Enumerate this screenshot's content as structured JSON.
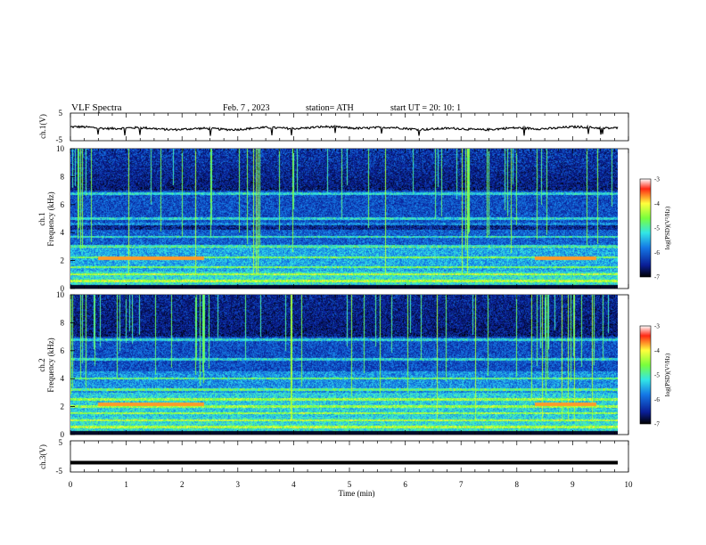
{
  "header": {
    "title": "VLF  Spectra",
    "date": "Feb. 7  , 2023",
    "station": "station= ATH",
    "start": "start  UT  =   20: 10: 1"
  },
  "colors": {
    "spectrogram_background": "#000000",
    "noise_low": "#0a1e96",
    "noise_mid": "#1478e6",
    "signal_cyan": "#32e6e6",
    "signal_green": "#78ff3c",
    "signal_yellow": "#ffff3c",
    "signal_red": "#ff2814"
  },
  "chart_data": [
    {
      "type": "line",
      "panel": "ch1-waveform",
      "ylabel": "ch.1(V)",
      "ylim": [
        -5,
        5
      ],
      "yticks": [
        "5",
        "-5"
      ],
      "xlim": [
        0,
        10
      ],
      "series": [
        {
          "values_description": "waveform centered near -0.5 V with small fluctuation",
          "mean": -0.5,
          "amplitude": 0.8
        }
      ]
    },
    {
      "type": "heatmap",
      "panel": "ch1-spectrogram",
      "ylabel": "ch.1\nFrequency (kHz)",
      "ylim": [
        0,
        10
      ],
      "yticks": [
        "0",
        "2",
        "4",
        "6",
        "8",
        "10"
      ],
      "xlim": [
        0,
        10
      ],
      "colorbar": {
        "label": "log(PSD)(V²/Hz)",
        "range": [
          -7,
          -3
        ],
        "ticks": [
          "-3",
          "-4",
          "-5",
          "-6",
          "-7"
        ]
      },
      "bands_khz": [
        0.5,
        1.0,
        1.5,
        2.2,
        3.0,
        3.7,
        4.6,
        5.0,
        6.8
      ]
    },
    {
      "type": "heatmap",
      "panel": "ch2-spectrogram",
      "ylabel": "ch.2\nFrequency (kHz)",
      "ylim": [
        0,
        10
      ],
      "yticks": [
        "0",
        "2",
        "4",
        "6",
        "8",
        "10"
      ],
      "xlim": [
        0,
        10
      ],
      "colorbar": {
        "label": "log(PSD)(V²/Hz)",
        "range": [
          -7,
          -3
        ],
        "ticks": [
          "-3",
          "-4",
          "-5",
          "-6",
          "-7"
        ]
      },
      "bands_khz": [
        0.5,
        1.0,
        1.5,
        2.0,
        2.5,
        3.2,
        4.0,
        5.4,
        6.8
      ]
    },
    {
      "type": "line",
      "panel": "ch3-waveform",
      "ylabel": "ch.3(V)",
      "ylim": [
        -5,
        5
      ],
      "yticks": [
        "5",
        "-5"
      ],
      "xlim": [
        0,
        10
      ],
      "series": [
        {
          "values_description": "flat line near -2 V",
          "mean": -2,
          "amplitude": 0.05
        }
      ]
    }
  ],
  "xaxis": {
    "label": "Time  (min)",
    "ticks": [
      "0",
      "1",
      "2",
      "3",
      "4",
      "5",
      "6",
      "7",
      "8",
      "9",
      "10"
    ],
    "xlim": [
      0,
      10
    ]
  }
}
